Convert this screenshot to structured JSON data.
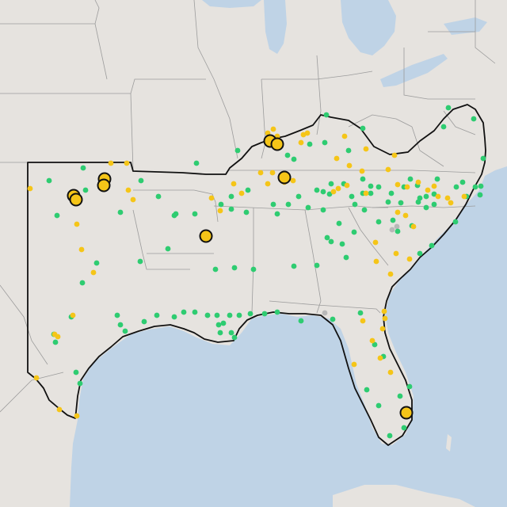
{
  "colors": {
    "land": "#e6e3df",
    "water": "#bfd3e6",
    "lakes": "#bfd3e6",
    "state_border": "#9c9c9c",
    "region_outline": "#111111",
    "dot_green": "#2ecc71",
    "dot_yellow": "#f5c518",
    "dot_gray": "#b8b8b8",
    "marker_fill": "#f5c518",
    "marker_stroke": "#111111"
  },
  "map": {
    "layer_legend": [
      {
        "key": "green",
        "icon": "green-dot-icon"
      },
      {
        "key": "yellow",
        "icon": "yellow-dot-icon"
      },
      {
        "key": "gray",
        "icon": "gray-dot-icon"
      },
      {
        "key": "large",
        "icon": "large-marker-icon"
      }
    ]
  }
}
